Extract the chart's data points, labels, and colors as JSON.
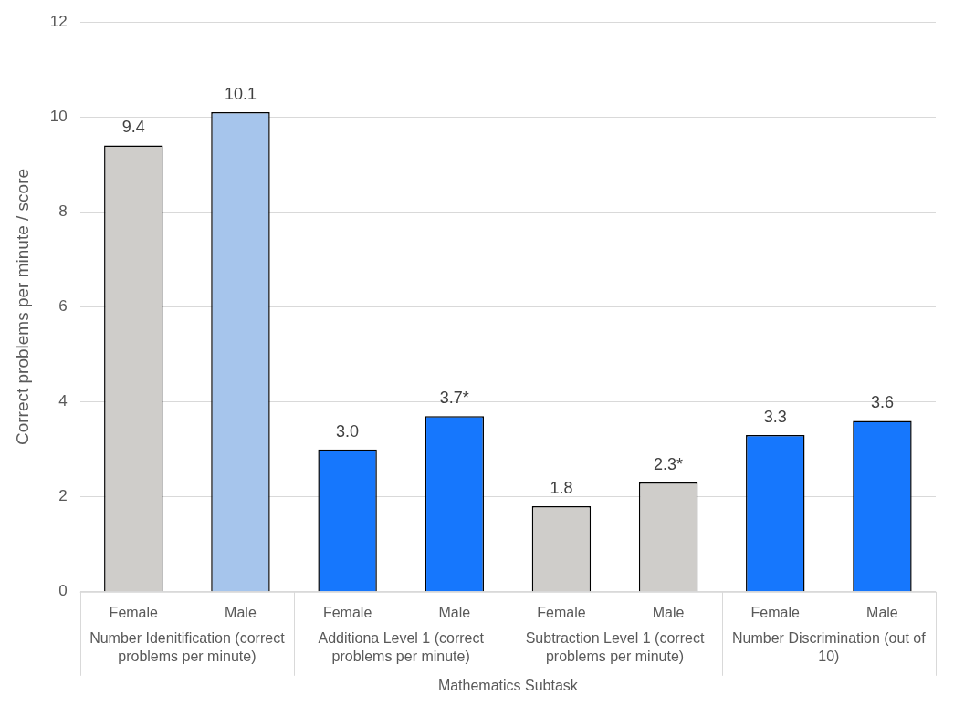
{
  "chart_data": {
    "type": "bar",
    "categories": [
      "Female",
      "Male",
      "Female",
      "Male",
      "Female",
      "Male",
      "Female",
      "Male"
    ],
    "values": [
      9.4,
      10.1,
      3.0,
      3.7,
      1.8,
      2.3,
      3.3,
      3.6
    ],
    "colors": [
      "#cfcdca",
      "#a6c5ec",
      "#1677fd",
      "#1677fd",
      "#cfcdca",
      "#cfcdca",
      "#1677fd",
      "#1677fd"
    ],
    "value_labels": [
      "9.4",
      "10.1",
      "3.0",
      "3.7*",
      "1.8",
      "2.3*",
      "3.3",
      "3.6"
    ],
    "annotations": [
      "Number Idenitification (correct problems per minute)",
      "Additiona Level 1 (correct problems per minute)",
      "Subtraction Level 1 (correct problems per minute)",
      "Number Discrimination (out of 10)"
    ],
    "xlabel": "Mathematics Subtask",
    "ylabel": "Correct problems per minute / score",
    "ylim": [
      0,
      12
    ],
    "yticks": [
      0,
      2,
      4,
      6,
      8,
      10,
      12
    ],
    "grid": "y",
    "legend": false
  }
}
